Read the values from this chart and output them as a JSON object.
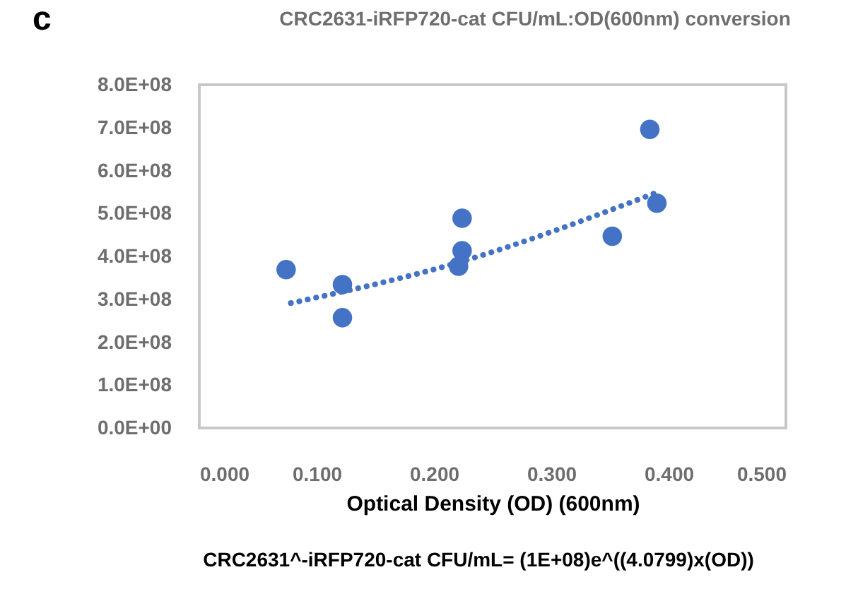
{
  "chart_data": {
    "type": "scatter",
    "title": "CRC2631-iRFP720-cat CFU/mL:OD(600nm) conversion",
    "xlabel": "Optical Density (OD) (600nm)",
    "annotations": [
      "c",
      "CRC2631^-iRFP720-cat CFU/mL= (1E+08)e^((4.0799)x(OD))"
    ],
    "series": [
      {
        "color": "#4472c4",
        "marker": "circle",
        "x": [
          0.074,
          0.122,
          0.122,
          0.224,
          0.224,
          0.221,
          0.352,
          0.384,
          0.39
        ],
        "values": [
          369000000,
          334000000,
          257000000,
          489000000,
          413000000,
          377000000,
          447000000,
          696000000,
          524000000
        ]
      },
      {
        "type": "line",
        "color": "#4472c4",
        "line_style": "dotted",
        "marker": "none",
        "x": [
          0.078,
          0.221,
          0.389
        ],
        "values": [
          291000000,
          386000000,
          548000000
        ]
      }
    ],
    "xlim": [
      0,
      0.5
    ],
    "ylim": [
      0,
      800000000
    ],
    "xticks": [
      {
        "value": 0,
        "label": "0.000"
      },
      {
        "value": 0.1,
        "label": "0.100"
      },
      {
        "value": 0.2,
        "label": "0.200"
      },
      {
        "value": 0.3,
        "label": "0.300"
      },
      {
        "value": 0.4,
        "label": "0.400"
      },
      {
        "value": 0.5,
        "label": "0.500"
      }
    ],
    "yticks": [
      {
        "value": 0,
        "label": "0.0E+00"
      },
      {
        "value": 100000000,
        "label": "1.0E+08"
      },
      {
        "value": 200000000,
        "label": "2.0E+08"
      },
      {
        "value": 300000000,
        "label": "3.0E+08"
      },
      {
        "value": 400000000,
        "label": "4.0E+08"
      },
      {
        "value": 500000000,
        "label": "5.0E+08"
      },
      {
        "value": 600000000,
        "label": "6.0E+08"
      },
      {
        "value": 700000000,
        "label": "7.0E+08"
      },
      {
        "value": 800000000,
        "label": "8.0E+08"
      }
    ],
    "grid": false
  }
}
